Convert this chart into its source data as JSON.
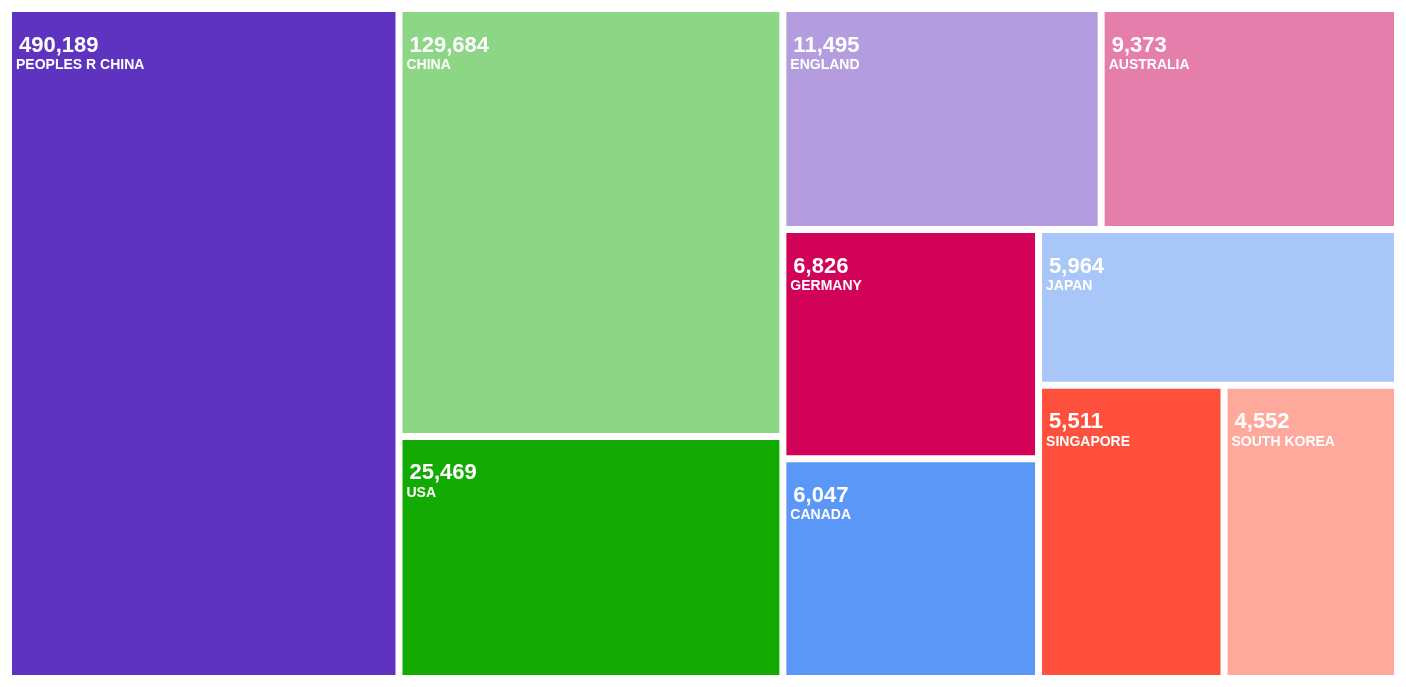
{
  "chart_data": {
    "type": "other",
    "categories": [
      "PEOPLES R CHINA",
      "CHINA",
      "USA",
      "ENGLAND",
      "AUSTRALIA",
      "GERMANY",
      "CANADA",
      "JAPAN",
      "SINGAPORE",
      "SOUTH KOREA"
    ],
    "values": [
      490189,
      129684,
      25469,
      11495,
      9373,
      6826,
      6047,
      5964,
      5511,
      4552
    ],
    "colors": [
      "#5e33bf",
      "#8dd685",
      "#14aa04",
      "#b39ddf",
      "#e57eaa",
      "#d10258",
      "#5a97f6",
      "#a8c6f8",
      "#ff503d",
      "#ffa89c"
    ],
    "value_labels": [
      "490,189",
      "129,684",
      "25,469",
      "11,495",
      "9,373",
      "6,826",
      "6,047",
      "5,964",
      "5,511",
      "4,552"
    ]
  }
}
